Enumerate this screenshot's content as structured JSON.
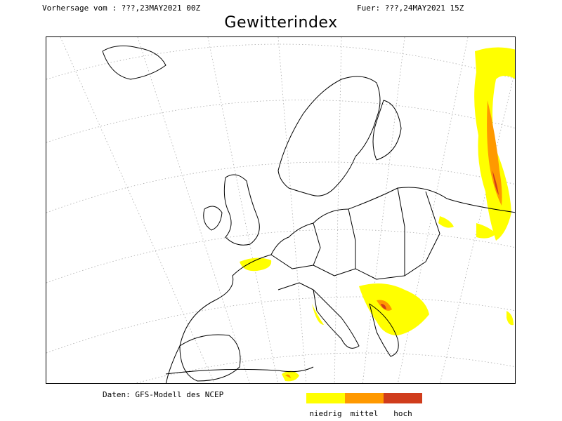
{
  "header": {
    "forecast_from": "Vorhersage vom : ???,23MAY2021 00Z",
    "valid_for": "Fuer: ???,24MAY2021 15Z"
  },
  "title": "Gewitterindex",
  "source": "Daten: GFS-Modell des NCEP",
  "legend": {
    "items": [
      {
        "label": "niedrig",
        "color": "#ffff00"
      },
      {
        "label": "mittel",
        "color": "#ff9900"
      },
      {
        "label": "hoch",
        "color": "#d03c1c"
      }
    ]
  },
  "map": {
    "region": "Europe",
    "coastline_color": "#000000",
    "gridline_color": "#aaaaaa"
  }
}
